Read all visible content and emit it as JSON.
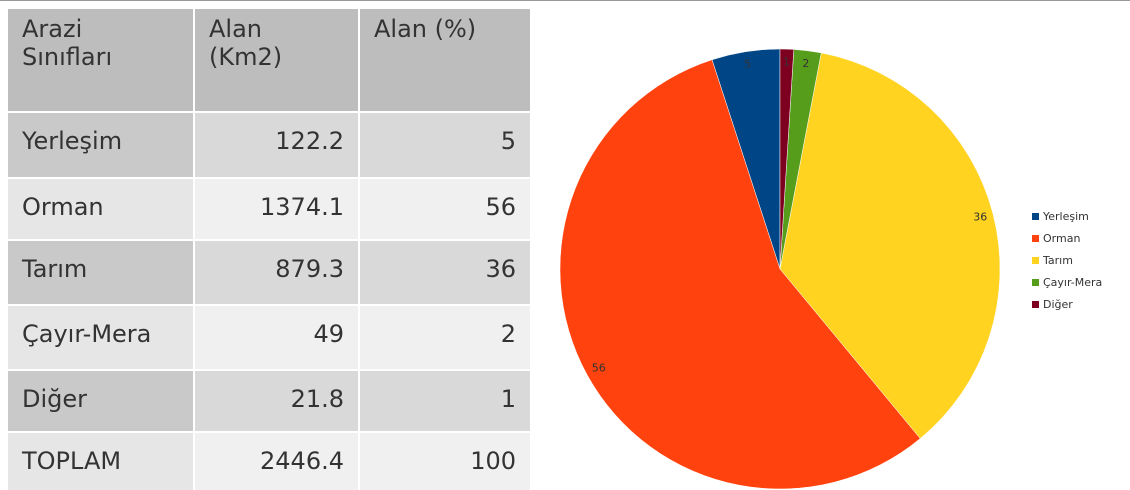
{
  "table": {
    "header": [
      "Arazi Sınıfları",
      "Alan (Km2)",
      "Alan (%)"
    ],
    "rows": [
      [
        "Yerleşim",
        122.2,
        5
      ],
      [
        "Orman",
        1374.1,
        56
      ],
      [
        "Tarım",
        879.3,
        36
      ],
      [
        "Çayır-Mera",
        49,
        2
      ],
      [
        "Diğer",
        21.8,
        1
      ],
      [
        "TOPLAM",
        2446.4,
        100
      ]
    ]
  },
  "chart_data": {
    "type": "pie",
    "categories": [
      "Yerleşim",
      "Orman",
      "Tarım",
      "Çayır-Mera",
      "Diğer"
    ],
    "values": [
      5,
      56,
      36,
      2,
      1
    ],
    "colors": [
      "#004586",
      "#ff420e",
      "#ffd320",
      "#579d1c",
      "#7e0021"
    ],
    "legend": "right"
  }
}
